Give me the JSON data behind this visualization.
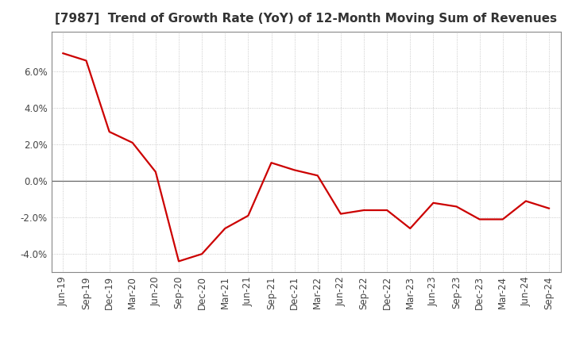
{
  "title": "[7987]  Trend of Growth Rate (YoY) of 12-Month Moving Sum of Revenues",
  "x_labels": [
    "Jun-19",
    "Sep-19",
    "Dec-19",
    "Mar-20",
    "Jun-20",
    "Sep-20",
    "Dec-20",
    "Mar-21",
    "Jun-21",
    "Sep-21",
    "Dec-21",
    "Mar-22",
    "Jun-22",
    "Sep-22",
    "Dec-22",
    "Mar-23",
    "Jun-23",
    "Sep-23",
    "Dec-23",
    "Mar-24",
    "Jun-24",
    "Sep-24"
  ],
  "y_values": [
    0.07,
    0.066,
    0.027,
    0.021,
    0.005,
    -0.044,
    -0.04,
    -0.026,
    -0.019,
    0.01,
    0.006,
    0.003,
    -0.018,
    -0.016,
    -0.016,
    -0.026,
    -0.012,
    -0.014,
    -0.021,
    -0.021,
    -0.011,
    -0.015
  ],
  "line_color": "#cc0000",
  "background_color": "#ffffff",
  "grid_color": "#bbbbbb",
  "zero_line_color": "#666666",
  "spine_color": "#888888",
  "ylim": [
    -0.05,
    0.082
  ],
  "yticks": [
    -0.04,
    -0.02,
    0.0,
    0.02,
    0.04,
    0.06
  ],
  "title_fontsize": 11,
  "tick_fontsize": 8.5,
  "line_width": 1.6
}
